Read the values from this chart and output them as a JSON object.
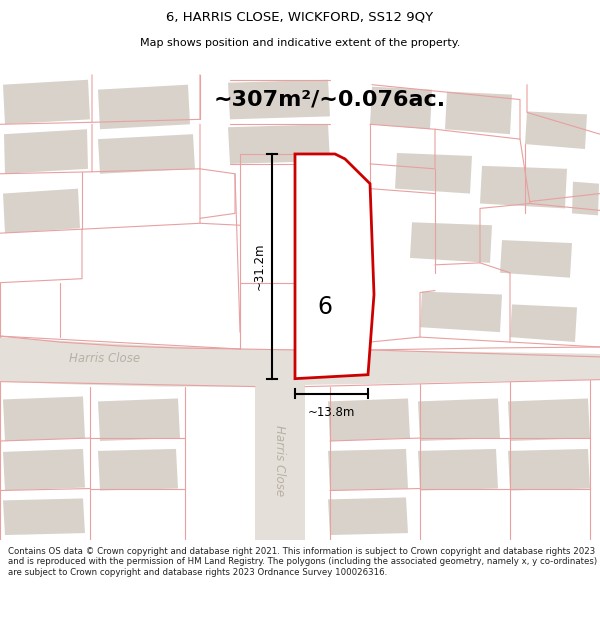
{
  "title_line1": "6, HARRIS CLOSE, WICKFORD, SS12 9QY",
  "title_line2": "Map shows position and indicative extent of the property.",
  "area_text": "~307m²/~0.076ac.",
  "dim_vertical": "~31.2m",
  "dim_horizontal": "~13.8m",
  "label_number": "6",
  "street_label1": "Harris Close",
  "street_label2": "Harris Close",
  "footer_text": "Contains OS data © Crown copyright and database right 2021. This information is subject to Crown copyright and database rights 2023 and is reproduced with the permission of HM Land Registry. The polygons (including the associated geometry, namely x, y co-ordinates) are subject to Crown copyright and database rights 2023 Ordnance Survey 100026316.",
  "map_bg": "#f0ece8",
  "road_color": "#e0dbd4",
  "building_color": "#d8d2ca",
  "red_color": "#cc0000",
  "pink_line_color": "#e8a0a0",
  "footer_bg": "#ffffff",
  "title_bg": "#ffffff",
  "road_label_color": "#b8b0a4"
}
